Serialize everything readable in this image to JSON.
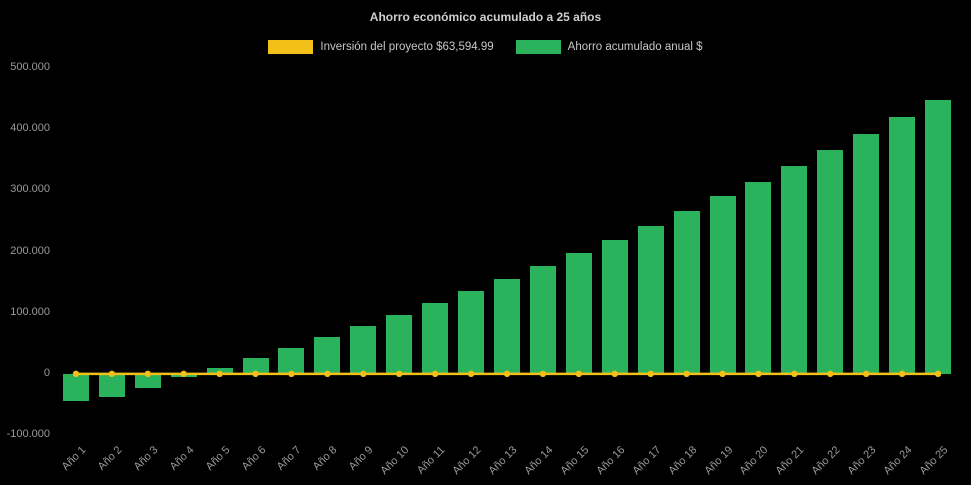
{
  "chart_data": {
    "type": "bar",
    "title": "Ahorro económico acumulado a 25 años",
    "background": "#000000",
    "text_color": "#9a9a9a",
    "legend_position": "top",
    "grid": false,
    "ylim": [
      -100000,
      500000
    ],
    "yticks": [
      {
        "value": 500000,
        "label": "500.000"
      },
      {
        "value": 400000,
        "label": "400.000"
      },
      {
        "value": 300000,
        "label": "300.000"
      },
      {
        "value": 200000,
        "label": "200.000"
      },
      {
        "value": 100000,
        "label": "100.000"
      },
      {
        "value": 0,
        "label": "0"
      },
      {
        "value": -100000,
        "label": "-100.000"
      }
    ],
    "categories": [
      "Año 1",
      "Año 2",
      "Año 3",
      "Año 4",
      "Año 5",
      "Año 6",
      "Año 7",
      "Año 8",
      "Año 9",
      "Año 10",
      "Año 11",
      "Año 12",
      "Año 13",
      "Año 14",
      "Año 15",
      "Año 16",
      "Año 17",
      "Año 18",
      "Año 19",
      "Año 20",
      "Año 21",
      "Año 22",
      "Año 23",
      "Año 24",
      "Año 25"
    ],
    "series": [
      {
        "name": "Inversión del proyecto $63,594.99",
        "type": "line",
        "color": "#f2c018",
        "values": [
          0,
          0,
          0,
          0,
          0,
          0,
          0,
          0,
          0,
          0,
          0,
          0,
          0,
          0,
          0,
          0,
          0,
          0,
          0,
          0,
          0,
          0,
          0,
          0,
          0
        ]
      },
      {
        "name": "Ahorro acumulado anual $",
        "type": "bar",
        "color": "#2bb25c",
        "values": [
          -45000,
          -38000,
          -23000,
          -6000,
          9000,
          26000,
          43000,
          61000,
          79000,
          97000,
          116000,
          135000,
          155000,
          176000,
          197000,
          219000,
          242000,
          266000,
          290000,
          314000,
          340000,
          366000,
          392000,
          420000,
          448000
        ]
      }
    ]
  }
}
